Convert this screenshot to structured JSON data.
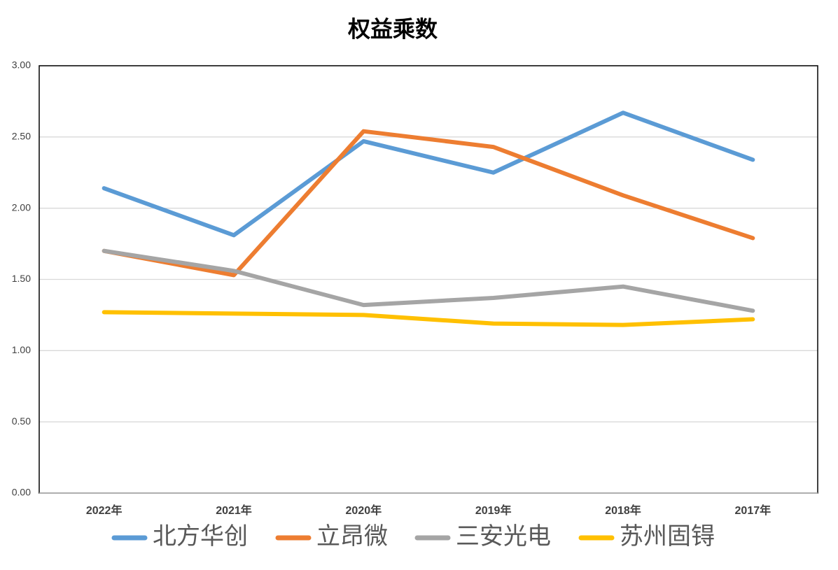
{
  "chart_data": {
    "type": "line",
    "title": "权益乘数",
    "categories": [
      "2022年",
      "2021年",
      "2020年",
      "2019年",
      "2018年",
      "2017年"
    ],
    "series": [
      {
        "name": "北方华创",
        "color": "#5b9bd5",
        "values": [
          2.14,
          1.81,
          2.47,
          2.25,
          2.67,
          2.34
        ]
      },
      {
        "name": "立昂微",
        "color": "#ed7d31",
        "values": [
          1.7,
          1.53,
          2.54,
          2.43,
          2.09,
          1.79
        ]
      },
      {
        "name": "三安光电",
        "color": "#a5a5a5",
        "values": [
          1.7,
          1.56,
          1.32,
          1.37,
          1.45,
          1.28
        ]
      },
      {
        "name": "苏州固锝",
        "color": "#ffc000",
        "values": [
          1.27,
          1.26,
          1.25,
          1.19,
          1.18,
          1.22
        ]
      }
    ],
    "ylim": [
      0,
      3
    ],
    "yticks": [
      {
        "value": 0,
        "label": "0.00"
      },
      {
        "value": 0.5,
        "label": "0.50"
      },
      {
        "value": 1,
        "label": "1.00"
      },
      {
        "value": 1.5,
        "label": "1.50"
      },
      {
        "value": 2,
        "label": "2.00"
      },
      {
        "value": 2.5,
        "label": "2.50"
      },
      {
        "value": 3,
        "label": "3.00"
      }
    ],
    "grid": true,
    "legend": "bottom"
  }
}
